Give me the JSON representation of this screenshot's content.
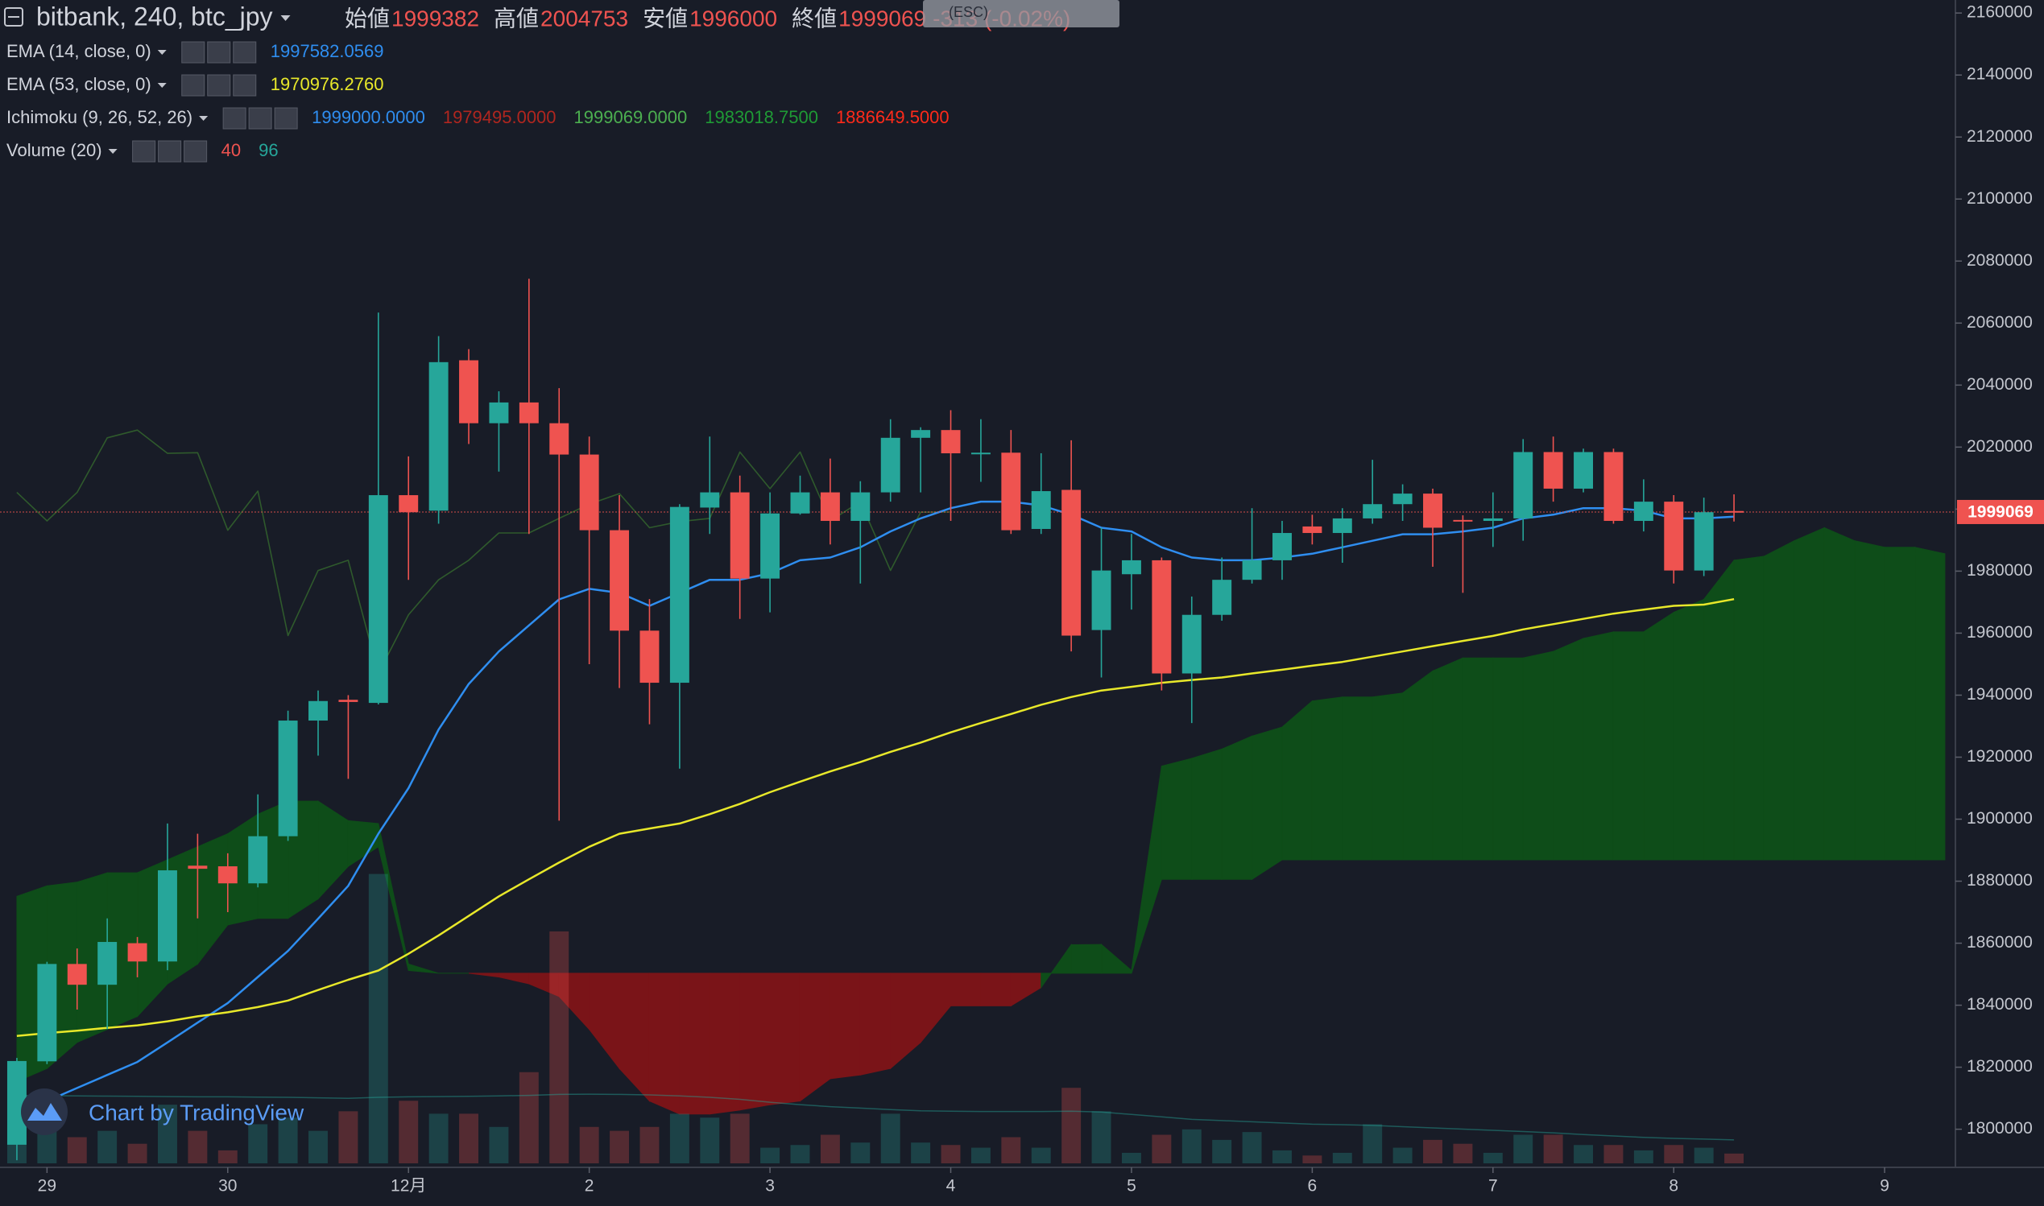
{
  "chart_data": {
    "type": "candlestick",
    "title": "bitbank, 240, btc_jpy",
    "ohlc_labels": [
      "始値",
      "高値",
      "安値",
      "終値"
    ],
    "change": "-313 (-0.02%)",
    "tooltip": "(ESC)",
    "watermark": "Chart by TradingView",
    "grid": false,
    "up_color": "#26a69a",
    "down_color": "#ef5350",
    "x": [
      0,
      1,
      2,
      3,
      4,
      5,
      6,
      7,
      8,
      9,
      10,
      11,
      12,
      13,
      14,
      15,
      16,
      17,
      18,
      19,
      20,
      21,
      22,
      23,
      24,
      25,
      26,
      27,
      28,
      29,
      30,
      31,
      32,
      33,
      34,
      35,
      36,
      37,
      38,
      39,
      40,
      41,
      42,
      43,
      44,
      45,
      46,
      47,
      48,
      49,
      50,
      51,
      52,
      53,
      54,
      55,
      56,
      57
    ],
    "open": [
      1795000,
      1821900,
      1853300,
      1846600,
      1860000,
      1854100,
      1885000,
      1884800,
      1879300,
      1894500,
      1931800,
      1938500,
      1937500,
      2004500,
      1999500,
      2048000,
      2027700,
      2034400,
      2027700,
      2017600,
      1993200,
      1960800,
      1944000,
      2000500,
      2005400,
      1977600,
      1998600,
      2005400,
      1996200,
      2005400,
      2023000,
      2025500,
      2017800,
      2018200,
      1993600,
      2006200,
      1961000,
      1979000,
      1983500,
      1947000,
      1965900,
      1977200,
      1983500,
      1994400,
      1992300,
      1997000,
      2001600,
      2005000,
      1996500,
      1996200,
      1997000,
      2018400,
      2006600,
      2018400,
      1996200,
      2002400,
      1980200,
      1999382
    ],
    "high": [
      1823000,
      1854000,
      1858300,
      1868000,
      1862000,
      1898600,
      1895300,
      1889000,
      1908000,
      1935000,
      1941500,
      1940000,
      2063400,
      2017000,
      2055800,
      2051600,
      2038000,
      2074300,
      2039000,
      2023400,
      2004500,
      1971000,
      2001600,
      2023400,
      2010800,
      2005400,
      2010800,
      2016300,
      2009000,
      2029000,
      2026400,
      2031900,
      2029000,
      2025500,
      2018000,
      2022200,
      1994000,
      1992000,
      1984400,
      1971800,
      1984400,
      2000300,
      1996200,
      1998200,
      2000300,
      2015900,
      2008000,
      2006600,
      1998000,
      2005400,
      2022600,
      2023400,
      2019500,
      2019500,
      2009600,
      2004500,
      2003700,
      2004753
    ],
    "low": [
      1790000,
      1821000,
      1838600,
      1832300,
      1849000,
      1851300,
      1868000,
      1870000,
      1878000,
      1893000,
      1920500,
      1913000,
      1937000,
      1977200,
      1995300,
      2021000,
      2012100,
      1992000,
      1899500,
      1950000,
      1942300,
      1930600,
      1916300,
      1992000,
      1964600,
      1966700,
      1998200,
      1988600,
      1976000,
      2002400,
      2005400,
      1996200,
      2008800,
      1992000,
      1992000,
      1954100,
      1945700,
      1967600,
      1941500,
      1931000,
      1964000,
      1976000,
      1977200,
      1988600,
      1982700,
      1995300,
      1996200,
      1981400,
      1973000,
      1987800,
      1989800,
      2002400,
      2005400,
      1995300,
      1992800,
      1976000,
      1978400,
      1996000
    ],
    "close": [
      1822000,
      1853300,
      1846600,
      1860400,
      1854100,
      1883500,
      1884000,
      1879300,
      1894500,
      1931800,
      1938100,
      1937800,
      2004500,
      1999000,
      2047400,
      2027700,
      2034400,
      2027700,
      2017600,
      1993200,
      1960800,
      1944000,
      2000700,
      2005400,
      1977600,
      1998600,
      2005400,
      1996200,
      2005400,
      2023000,
      2025500,
      2018000,
      2018200,
      1993200,
      2005800,
      1959200,
      1980200,
      1983500,
      1947000,
      1965900,
      1977200,
      1983500,
      1992300,
      1992300,
      1997000,
      2001600,
      2005000,
      1994000,
      1996000,
      1997000,
      2018400,
      2006600,
      2018400,
      1996200,
      2002400,
      1980200,
      1999000,
      1999069
    ],
    "xlim": [
      -0.56,
      64.35
    ],
    "xticks": [
      {
        "value": 1,
        "label": "29"
      },
      {
        "value": 7,
        "label": "30"
      },
      {
        "value": 13,
        "label": "12月"
      },
      {
        "value": 19,
        "label": "2"
      },
      {
        "value": 25,
        "label": "3"
      },
      {
        "value": 31,
        "label": "4"
      },
      {
        "value": 37,
        "label": "5"
      },
      {
        "value": 43,
        "label": "6"
      },
      {
        "value": 49,
        "label": "7"
      },
      {
        "value": 55,
        "label": "8"
      },
      {
        "value": 62,
        "label": "9"
      }
    ],
    "ylim": [
      1789000,
      2164200
    ],
    "yticks": [
      1800000,
      1820000,
      1840000,
      1860000,
      1880000,
      1900000,
      1920000,
      1940000,
      1960000,
      1980000,
      2000000,
      2020000,
      2040000,
      2060000,
      2080000,
      2100000,
      2120000,
      2140000,
      2160000
    ],
    "series": [
      {
        "name": "EMA (14, close, 0)",
        "color": "#2f8ef0",
        "last_label": "1997582.0569",
        "values": [
          1804900,
          1809100,
          1813300,
          1817500,
          1821700,
          1828000,
          1834400,
          1840700,
          1849100,
          1857500,
          1867900,
          1878500,
          1895300,
          1910000,
          1928900,
          1943600,
          1954100,
          1962500,
          1970900,
          1974300,
          1973000,
          1968800,
          1973000,
          1977200,
          1977200,
          1979300,
          1983500,
          1984400,
          1987700,
          1992800,
          1997000,
          2000300,
          2002400,
          2002400,
          2001200,
          1998200,
          1994000,
          1992800,
          1987700,
          1984400,
          1983500,
          1983500,
          1984400,
          1985600,
          1987700,
          1989800,
          1991900,
          1991900,
          1992800,
          1994000,
          1997000,
          1998200,
          2000300,
          2000300,
          1999500,
          1997000,
          1997000,
          1997582.0569
        ]
      },
      {
        "name": "EMA (53, close, 0)",
        "color": "#e8e82a",
        "last_label": "1970976.2760",
        "values": [
          1830100,
          1831000,
          1831800,
          1832700,
          1833500,
          1834800,
          1836400,
          1837700,
          1839400,
          1841500,
          1844900,
          1848200,
          1851200,
          1856600,
          1862500,
          1868800,
          1875100,
          1880600,
          1886000,
          1891100,
          1895300,
          1897000,
          1898600,
          1901600,
          1904900,
          1908700,
          1912100,
          1915400,
          1918400,
          1921700,
          1924700,
          1928000,
          1931000,
          1933900,
          1936900,
          1939400,
          1941500,
          1942700,
          1944000,
          1944900,
          1945700,
          1947000,
          1948200,
          1949500,
          1950700,
          1952400,
          1954100,
          1955800,
          1957500,
          1959100,
          1961200,
          1962900,
          1964600,
          1966300,
          1967600,
          1968800,
          1969200,
          1970976.276
        ]
      }
    ],
    "ichimoku": {
      "name": "Ichimoku (9, 26, 52, 26)",
      "up_color": "#0e4d19",
      "down_color": "#7a1418",
      "lagging_color": "#2f5a2c",
      "lagging_shift": 26,
      "legend": [
        {
          "label": "1999000.0000",
          "color": "#2f8ef0"
        },
        {
          "label": "1979495.0000",
          "color": "#b0261f"
        },
        {
          "label": "1999069.0000",
          "color": "#4caf50"
        },
        {
          "label": "1983018.7500",
          "color": "#1f9a35"
        },
        {
          "label": "1886649.5000",
          "color": "#ff2a1a"
        }
      ],
      "x": [
        0,
        1,
        2,
        3,
        4,
        5,
        6,
        7,
        8,
        9,
        10,
        11,
        12,
        13,
        14,
        15,
        16,
        17,
        18,
        19,
        20,
        21,
        22,
        23,
        24,
        25,
        26,
        27,
        28,
        29,
        30,
        31,
        32,
        33,
        34,
        35,
        36,
        37,
        38,
        39,
        40,
        41,
        42,
        43,
        44,
        45,
        46,
        47,
        48,
        49,
        50,
        51,
        52,
        53,
        54,
        55,
        56,
        57,
        58,
        59,
        60,
        61,
        62,
        63,
        64
      ],
      "span_a": [
        1875100,
        1878500,
        1879700,
        1882700,
        1882700,
        1886900,
        1891100,
        1895300,
        1901600,
        1905800,
        1905800,
        1899500,
        1898600,
        1853300,
        1850300,
        1850300,
        1849100,
        1846900,
        1842800,
        1832200,
        1819600,
        1809100,
        1804900,
        1804900,
        1806200,
        1807900,
        1809100,
        1816300,
        1817500,
        1819600,
        1828000,
        1839800,
        1839800,
        1839800,
        1845700,
        1859500,
        1859600,
        1851200,
        1917100,
        1919600,
        1922600,
        1926800,
        1929700,
        1938100,
        1939400,
        1939400,
        1940700,
        1947800,
        1952000,
        1952000,
        1952000,
        1954100,
        1958300,
        1960400,
        1960400,
        1966700,
        1970900,
        1983500,
        1984800,
        1989800,
        1994000,
        1989800,
        1987700,
        1987700,
        1985600
      ],
      "span_b": [
        1815400,
        1819600,
        1828000,
        1832200,
        1836400,
        1846900,
        1853300,
        1865900,
        1868000,
        1868000,
        1874300,
        1884800,
        1891100,
        1851200,
        1850300,
        1850300,
        1850300,
        1850300,
        1850300,
        1850300,
        1850300,
        1850300,
        1850300,
        1850300,
        1850300,
        1850300,
        1850300,
        1850300,
        1850300,
        1850300,
        1850300,
        1850300,
        1850300,
        1850300,
        1850300,
        1850300,
        1850300,
        1850300,
        1880600,
        1880600,
        1880600,
        1880600,
        1886900,
        1886900,
        1886900,
        1886900,
        1886900,
        1886900,
        1886900,
        1886900,
        1886900,
        1886900,
        1886900,
        1886900,
        1886900,
        1886900,
        1886900,
        1886900,
        1886900,
        1886900,
        1886900,
        1886900,
        1886900,
        1886900,
        1886900
      ]
    },
    "volume": {
      "name": "Volume (20)",
      "ylim": [
        0,
        4760
      ],
      "ma_color": "#26a69a",
      "values": [
        160,
        213,
        107,
        133,
        80,
        240,
        133,
        53,
        160,
        187,
        133,
        213,
        1184,
        256,
        203,
        203,
        149,
        373,
        949,
        149,
        133,
        149,
        203,
        187,
        203,
        64,
        75,
        117,
        85,
        203,
        85,
        75,
        64,
        107,
        64,
        309,
        213,
        43,
        117,
        139,
        96,
        128,
        53,
        32,
        43,
        160,
        64,
        96,
        80,
        43,
        117,
        117,
        75,
        75,
        53,
        75,
        64,
        40
      ],
      "ma": [
        277,
        277,
        276,
        275,
        274,
        273,
        272,
        272,
        271,
        270,
        268,
        266,
        270,
        272,
        273,
        274,
        276,
        278,
        282,
        283,
        282,
        280,
        276,
        270,
        262,
        250,
        240,
        232,
        226,
        220,
        215,
        213,
        212,
        212,
        212,
        213,
        210,
        200,
        190,
        180,
        175,
        170,
        165,
        160,
        158,
        155,
        150,
        145,
        140,
        135,
        130,
        125,
        118,
        112,
        106,
        102,
        99,
        96
      ]
    }
  }
}
